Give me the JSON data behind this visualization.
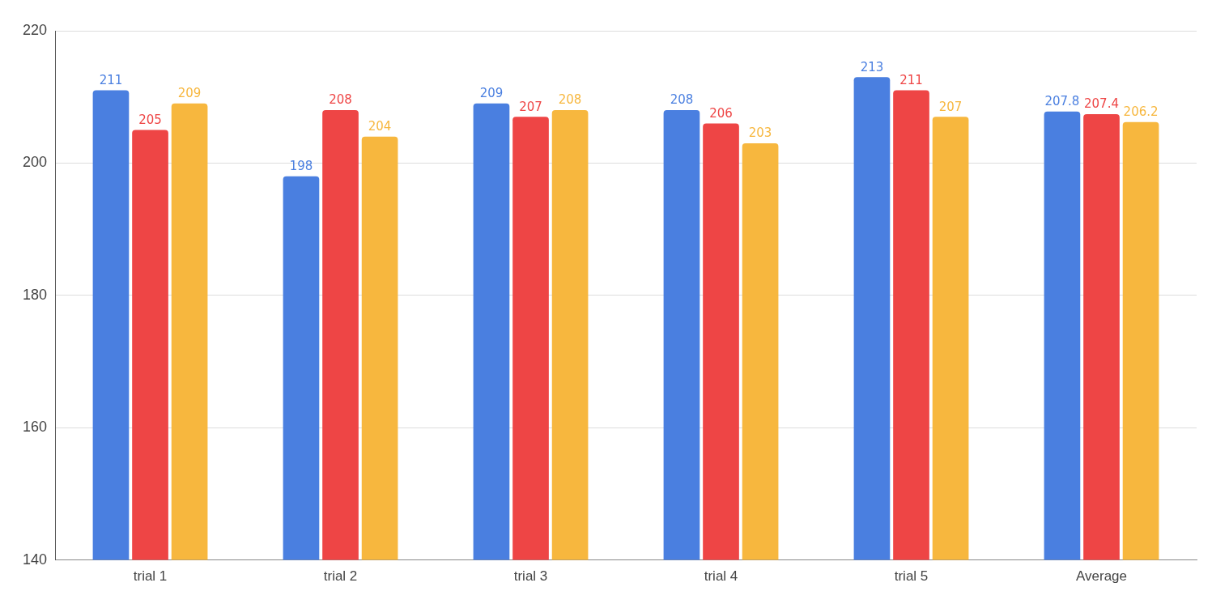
{
  "chart_data": {
    "type": "bar",
    "categories": [
      "trial 1",
      "trial 2",
      "trial 3",
      "trial 4",
      "trial 5",
      "Average"
    ],
    "series": [
      {
        "color": "#4a7fe0",
        "values": [
          211,
          198,
          209,
          208,
          213,
          207.8
        ]
      },
      {
        "color": "#ee4545",
        "values": [
          205,
          208,
          207,
          206,
          211,
          207.4
        ]
      },
      {
        "color": "#f7b73e",
        "values": [
          209,
          204,
          208,
          203,
          207,
          206.2
        ]
      }
    ],
    "ylim": [
      140,
      220
    ],
    "yticks": [
      140,
      160,
      180,
      200,
      220
    ],
    "grid": "y",
    "data_labels": true,
    "legend": false
  }
}
